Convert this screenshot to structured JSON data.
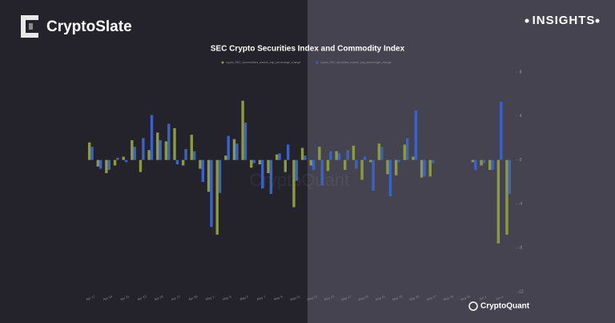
{
  "header": {
    "brand": "CryptoSlate",
    "tag": "INSIGHTS"
  },
  "chart_data": {
    "type": "bar",
    "title": "SEC Crypto Securities Index and Commodity Index",
    "categories": [
      "Apr 17",
      null,
      "Apr 19",
      null,
      "Apr 21",
      null,
      "Apr 23",
      null,
      "Apr 25",
      null,
      "Apr 27",
      null,
      "Apr 29",
      null,
      "May 1",
      null,
      "May 3",
      null,
      "May 5",
      null,
      "May 7",
      null,
      "May 9",
      null,
      "May 11",
      null,
      "May 13",
      null,
      "May 15",
      null,
      "May 17",
      null,
      "May 19",
      null,
      "May 21",
      null,
      "May 23",
      null,
      "May 25",
      null,
      "May 27",
      null,
      "May 29",
      null,
      "May 31",
      null,
      "Jun 2",
      null,
      "Jun 4",
      null
    ],
    "series": [
      {
        "name": "crypto_SEC_commodities_market_cap_percentage_change",
        "color": "#8c9c3c",
        "values": [
          1.6,
          -0.6,
          -1.2,
          -0.5,
          0.3,
          1.8,
          -1.1,
          0.9,
          2.5,
          1.7,
          2.9,
          -0.5,
          2.3,
          -0.8,
          -2.9,
          -6.8,
          0.4,
          1.9,
          5.4,
          -0.7,
          -0.4,
          -1.2,
          0.5,
          -1.1,
          -4.3,
          1.1,
          -0.5,
          1.2,
          -1.0,
          0.8,
          -0.9,
          1.3,
          -1.8,
          -0.2,
          1.5,
          -1.3,
          -1.4,
          1.4,
          0.3,
          -1.6,
          -1.5,
          null,
          null,
          null,
          null,
          -0.2,
          -0.5,
          -0.9,
          -7.6,
          -6.8
        ]
      },
      {
        "name": "crypto_SEC_securities_market_cap_percentage_change",
        "color": "#3b62c8",
        "values": [
          1.2,
          -0.8,
          -0.9,
          0.2,
          -0.2,
          1.2,
          2.0,
          4.1,
          1.8,
          3.3,
          -0.4,
          1.0,
          0.8,
          -2.0,
          -6.1,
          -3.0,
          2.2,
          1.5,
          3.4,
          -0.3,
          -2.6,
          -3.1,
          0.6,
          1.4,
          -1.9,
          0.4,
          -0.9,
          -2.3,
          0.8,
          0.6,
          0.9,
          -0.8,
          0.3,
          -2.8,
          1.2,
          -3.3,
          -0.2,
          2.0,
          4.5,
          -1.5,
          -0.3,
          null,
          null,
          null,
          null,
          -0.9,
          -0.3,
          -0.9,
          5.3,
          -3.1
        ]
      }
    ],
    "ylim": [
      -12,
      8
    ],
    "yticks": [
      -12,
      -8,
      -4,
      0,
      4,
      8
    ],
    "watermark": "CryptoQuant",
    "source": "CryptoQuant"
  }
}
